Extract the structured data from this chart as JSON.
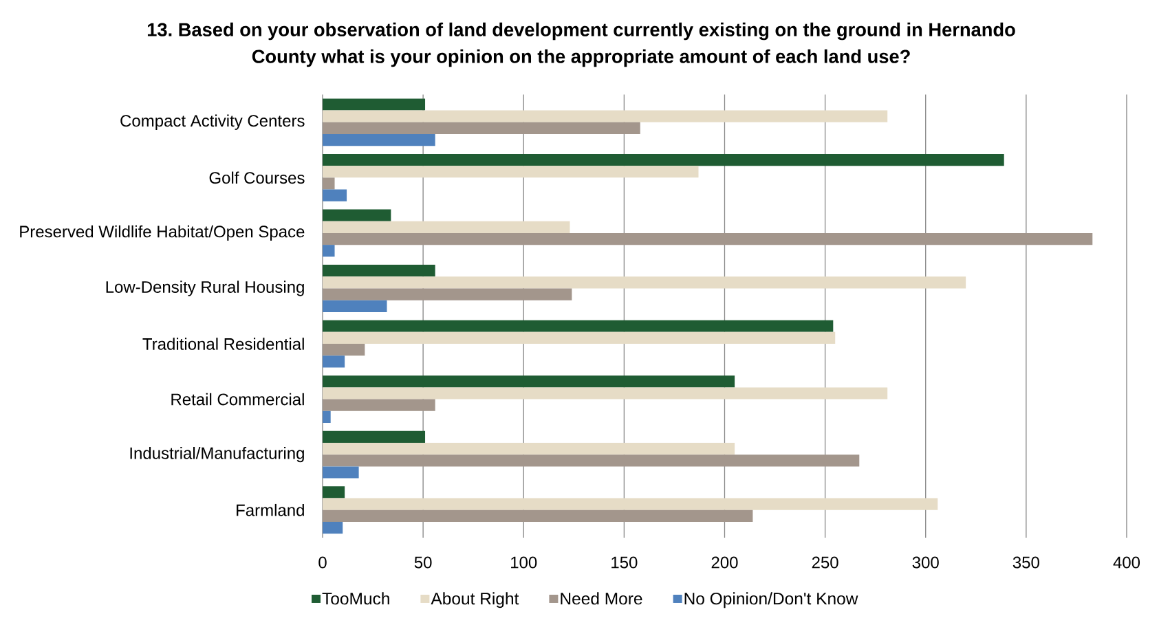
{
  "chart_data": {
    "type": "bar",
    "orientation": "horizontal",
    "title": "13. Based on your observation of land development currently existing on the ground in Hernando County what is your opinion on the appropriate amount of each land use?",
    "categories": [
      "Compact Activity Centers",
      "Golf Courses",
      "Preserved Wildlife Habitat/Open Space",
      "Low-Density Rural Housing",
      "Traditional Residential",
      "Retail Commercial",
      "Industrial/Manufacturing",
      "Farmland"
    ],
    "series": [
      {
        "name": "TooMuch",
        "color": "#1f5c33",
        "values": [
          51,
          339,
          34,
          56,
          254,
          205,
          51,
          11
        ]
      },
      {
        "name": "About Right",
        "color": "#e6dcc6",
        "values": [
          281,
          187,
          123,
          320,
          255,
          281,
          205,
          306
        ]
      },
      {
        "name": "Need More",
        "color": "#a3968c",
        "values": [
          158,
          6,
          383,
          124,
          21,
          56,
          267,
          214
        ]
      },
      {
        "name": "No Opinion/Don't Know",
        "color": "#4f81bd",
        "values": [
          56,
          12,
          6,
          32,
          11,
          4,
          18,
          10
        ]
      }
    ],
    "xlim": [
      0,
      400
    ],
    "xticks": [
      0,
      50,
      100,
      150,
      200,
      250,
      300,
      350,
      400
    ],
    "grid": "x",
    "legend": "bottom"
  }
}
